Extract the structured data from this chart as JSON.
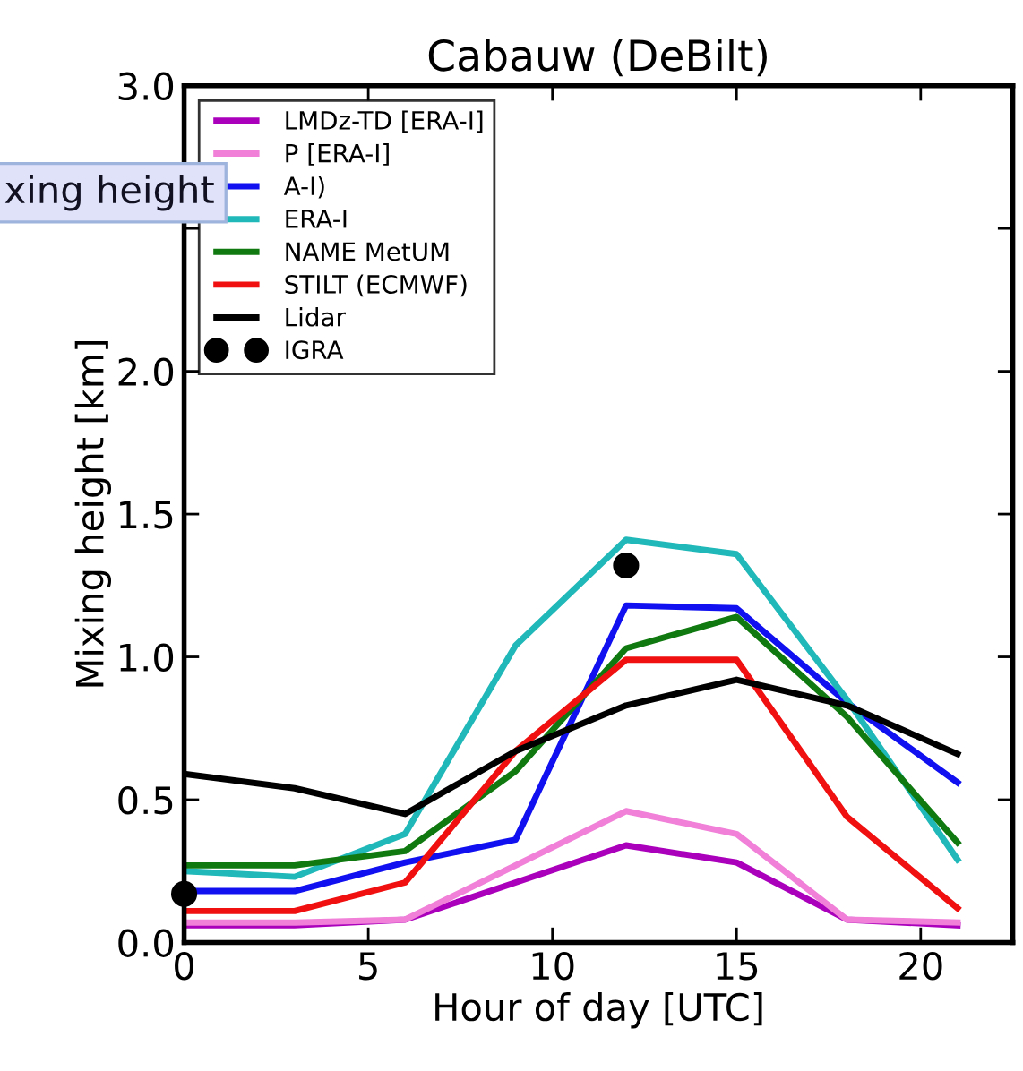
{
  "chart_data": {
    "type": "line",
    "title": "Cabauw (DeBilt)",
    "xlabel": "Hour of day [UTC]",
    "ylabel": "Mixing height [km]",
    "annotations": [
      "xing height"
    ],
    "x": [
      0,
      3,
      6,
      9,
      12,
      15,
      18,
      21
    ],
    "xlim": [
      0,
      22.5
    ],
    "xticks": [
      0,
      5,
      10,
      15,
      20
    ],
    "ylim": [
      0,
      3.0
    ],
    "yticks": [
      {
        "value": 0,
        "label": "0.0"
      },
      0.5,
      {
        "value": 1,
        "label": "1.0"
      },
      1.5,
      {
        "value": 2,
        "label": "2.0"
      },
      {
        "value": 2.5,
        "label": null
      },
      {
        "value": 3,
        "label": "3.0"
      }
    ],
    "grid": false,
    "legend": "top left",
    "series": [
      {
        "name": "LMDz-TD [ERA-I]",
        "color": "#aa00bb",
        "values": [
          0.06,
          0.06,
          0.08,
          0.21,
          0.34,
          0.28,
          0.08,
          0.06
        ]
      },
      {
        "name": "P [ERA-I]",
        "color": "#f080d8",
        "values": [
          0.07,
          0.07,
          0.08,
          0.27,
          0.46,
          0.38,
          0.08,
          0.07
        ]
      },
      {
        "name": "A-I)",
        "color": "#1010f0",
        "values": [
          0.18,
          0.18,
          0.28,
          0.36,
          1.18,
          1.17,
          0.84,
          0.56
        ]
      },
      {
        "name": "ERA-I",
        "color": "#20b8b8",
        "values": [
          0.25,
          0.23,
          0.38,
          1.04,
          1.41,
          1.36,
          0.85,
          0.29
        ]
      },
      {
        "name": "NAME MetUM",
        "color": "#107a10",
        "values": [
          0.27,
          0.27,
          0.32,
          0.6,
          1.03,
          1.14,
          0.79,
          0.35
        ]
      },
      {
        "name": "STILT (ECMWF)",
        "color": "#f01010",
        "values": [
          0.11,
          0.11,
          0.21,
          0.67,
          0.99,
          0.99,
          0.44,
          0.12
        ]
      },
      {
        "name": "Lidar",
        "color": "#000000",
        "values": [
          0.59,
          0.54,
          0.45,
          0.67,
          0.83,
          0.92,
          0.83,
          0.66
        ]
      },
      {
        "name": "IGRA",
        "type": "scatter",
        "marker": "circle",
        "color": "#000000",
        "x": [
          0,
          12
        ],
        "values": [
          0.17,
          1.32
        ]
      }
    ]
  }
}
